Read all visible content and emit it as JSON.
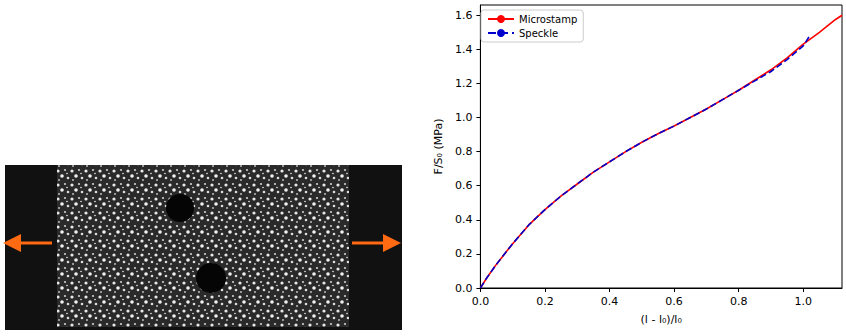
{
  "chart_data": {
    "type": "line",
    "x_label": "(l - l₀)/l₀",
    "y_label": "F/S₀ (MPa)",
    "xlim": [
      0,
      1.12
    ],
    "xticks": [
      {
        "value": 0,
        "label": "0.0"
      },
      0.2,
      0.4,
      0.6,
      0.8,
      {
        "value": 1,
        "label": "1.0"
      }
    ],
    "ylim": [
      0,
      1.66
    ],
    "yticks": [
      {
        "value": 0,
        "label": "0.0"
      },
      0.2,
      0.4,
      0.6,
      0.8,
      {
        "value": 1,
        "label": "1.0"
      },
      1.2,
      1.4,
      1.6
    ],
    "grid": false,
    "legend": "upper left",
    "series": [
      {
        "name": "Microstamp",
        "color": "#ff0000",
        "line_style": "solid",
        "x": [
          0,
          0.02,
          0.05,
          0.1,
          0.15,
          0.2,
          0.25,
          0.3,
          0.35,
          0.4,
          0.45,
          0.5,
          0.55,
          0.6,
          0.65,
          0.7,
          0.75,
          0.8,
          0.85,
          0.9,
          0.95,
          1.0,
          1.05,
          1.1,
          1.12
        ],
        "values": [
          0,
          0.06,
          0.14,
          0.26,
          0.37,
          0.46,
          0.54,
          0.61,
          0.68,
          0.74,
          0.8,
          0.855,
          0.905,
          0.95,
          1.0,
          1.05,
          1.105,
          1.16,
          1.22,
          1.28,
          1.35,
          1.43,
          1.5,
          1.575,
          1.6
        ]
      },
      {
        "name": "Speckle",
        "color": "#0000cc",
        "line_style": "dashed",
        "x": [
          0,
          0.02,
          0.05,
          0.1,
          0.15,
          0.2,
          0.25,
          0.3,
          0.35,
          0.4,
          0.45,
          0.5,
          0.55,
          0.6,
          0.65,
          0.7,
          0.75,
          0.8,
          0.85,
          0.9,
          0.95,
          1.0,
          1.02
        ],
        "values": [
          0,
          0.06,
          0.14,
          0.26,
          0.37,
          0.46,
          0.54,
          0.61,
          0.68,
          0.74,
          0.8,
          0.855,
          0.905,
          0.95,
          1.0,
          1.05,
          1.105,
          1.16,
          1.215,
          1.27,
          1.34,
          1.42,
          1.48
        ]
      }
    ]
  }
}
